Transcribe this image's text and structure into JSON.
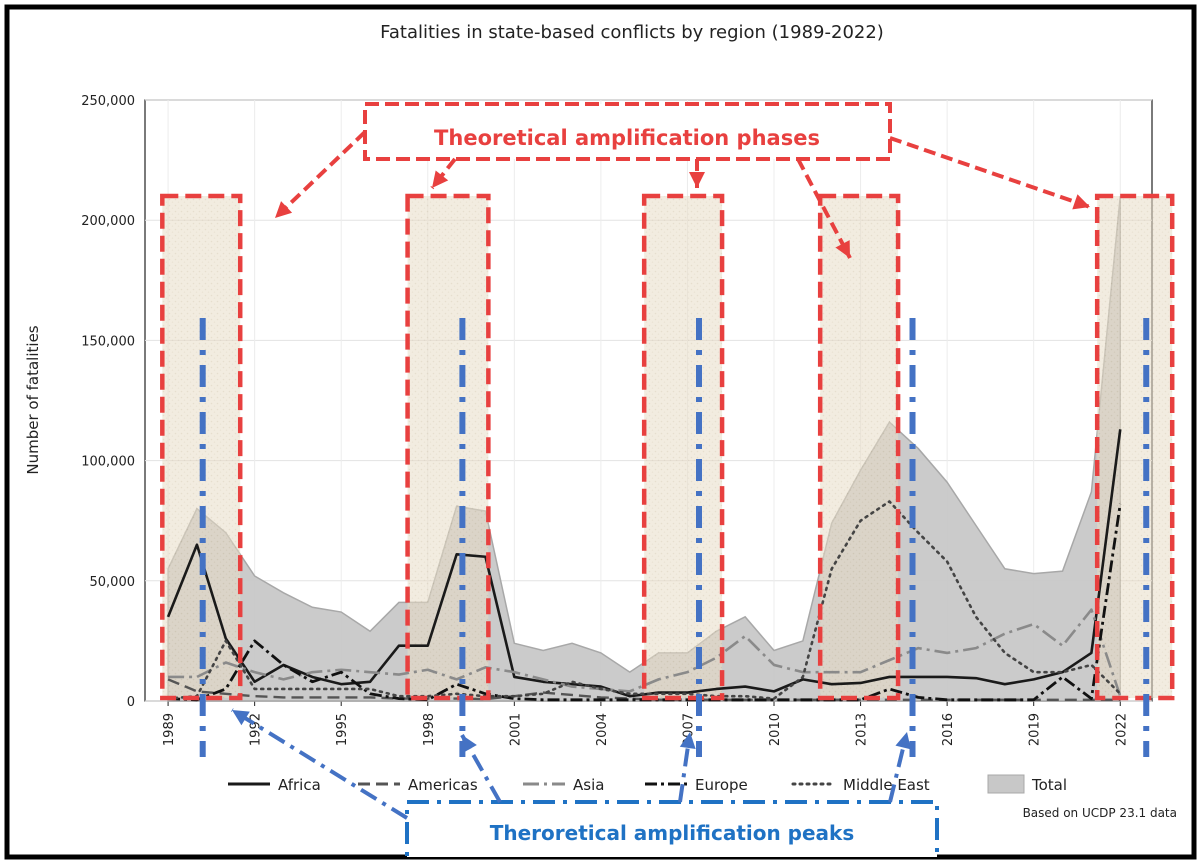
{
  "chart_data": {
    "type": "area",
    "title": "Fatalities in state-based conflicts by region (1989-2022)",
    "ylabel": "Number of fatalities",
    "xlabel": "",
    "source_note": "Based on UCDP 23.1 data",
    "ylim": [
      0,
      250000
    ],
    "xlim": [
      1988.2,
      2023.1
    ],
    "grid": true,
    "legend_position": "bottom",
    "y_ticks": [
      0,
      50000,
      100000,
      150000,
      200000,
      250000
    ],
    "y_tick_labels": [
      "0",
      "50,000",
      "100,000",
      "150,000",
      "200,000",
      "250,000"
    ],
    "x_ticks": [
      1989,
      1992,
      1995,
      1998,
      2001,
      2004,
      2007,
      2010,
      2013,
      2016,
      2019,
      2022
    ],
    "x_tick_labels": [
      "1989",
      "1992",
      "1995",
      "1998",
      "2001",
      "2004",
      "2007",
      "2010",
      "2013",
      "2016",
      "2019",
      "2022"
    ],
    "x": [
      1989,
      1990,
      1991,
      1992,
      1993,
      1994,
      1995,
      1996,
      1997,
      1998,
      1999,
      2000,
      2001,
      2002,
      2003,
      2004,
      2005,
      2006,
      2007,
      2008,
      2009,
      2010,
      2011,
      2012,
      2013,
      2014,
      2015,
      2016,
      2017,
      2018,
      2019,
      2020,
      2021,
      2022
    ],
    "total": {
      "name": "Total",
      "color": "#c8c8c8",
      "values": [
        55000,
        80000,
        70000,
        52000,
        45000,
        39000,
        37000,
        29000,
        41000,
        41000,
        81000,
        79000,
        24000,
        21000,
        24000,
        20000,
        12000,
        20000,
        20000,
        29000,
        35000,
        21000,
        25000,
        74000,
        96000,
        116000,
        105000,
        91000,
        73000,
        55000,
        53000,
        54000,
        87000,
        210000
      ]
    },
    "series": [
      {
        "name": "Africa",
        "style": "solid",
        "color": "#1a1a1a",
        "values": [
          35000,
          65000,
          26000,
          8000,
          15000,
          10000,
          7000,
          8000,
          23000,
          23000,
          61000,
          60000,
          10000,
          8000,
          7000,
          6000,
          2000,
          3500,
          3500,
          5000,
          6000,
          4000,
          9000,
          7000,
          7500,
          10000,
          10000,
          10000,
          9500,
          7000,
          9000,
          12000,
          20000,
          113000
        ]
      },
      {
        "name": "Americas",
        "style": "dashed",
        "color": "#555555",
        "values": [
          9000,
          4000,
          3000,
          2000,
          1500,
          1500,
          1500,
          1500,
          1000,
          1000,
          1000,
          800,
          2000,
          3500,
          2500,
          1500,
          1000,
          500,
          500,
          500,
          500,
          500,
          500,
          500,
          500,
          500,
          500,
          500,
          500,
          500,
          500,
          500,
          500,
          500
        ]
      },
      {
        "name": "Asia",
        "style": "dashdot",
        "color": "#8a8a8a",
        "values": [
          10000,
          10000,
          16000,
          12000,
          9000,
          12000,
          13000,
          12000,
          11000,
          13000,
          9000,
          14000,
          12000,
          9000,
          6000,
          5000,
          4000,
          9000,
          12000,
          18000,
          27000,
          15000,
          12000,
          12000,
          12000,
          17000,
          22000,
          20000,
          22000,
          28000,
          32000,
          23000,
          38000,
          2000
        ]
      },
      {
        "name": "Europe",
        "style": "dashdotbold",
        "color": "#111111",
        "values": [
          1000,
          500,
          5000,
          25000,
          15000,
          8000,
          12000,
          3000,
          1000,
          500,
          7000,
          3000,
          1000,
          500,
          500,
          500,
          500,
          500,
          500,
          500,
          500,
          500,
          500,
          500,
          500,
          5000,
          1500,
          500,
          500,
          500,
          500,
          10000,
          1000,
          82000
        ]
      },
      {
        "name": "Middle East",
        "style": "dotted",
        "color": "#444444",
        "values": [
          1000,
          2000,
          25000,
          5000,
          5000,
          5000,
          5000,
          5000,
          2000,
          2000,
          3000,
          2000,
          2000,
          3000,
          8000,
          5000,
          3000,
          3000,
          3000,
          2000,
          2000,
          1000,
          10000,
          55000,
          75000,
          83000,
          70000,
          58000,
          35000,
          20000,
          12000,
          12000,
          15000,
          3000
        ]
      }
    ]
  },
  "annotations": {
    "phases_label": "Theoretical amplification phases",
    "peaks_label": "Theroretical amplification peaks",
    "phase_color": "#e8403f",
    "peak_color": "#4472c4",
    "peak_label_color": "#1f72c4",
    "phase_ranges": [
      [
        1988.8,
        1991.5
      ],
      [
        1997.3,
        2000.1
      ],
      [
        2005.5,
        2008.2
      ],
      [
        2011.6,
        2014.3
      ],
      [
        2021.2,
        2023.8
      ]
    ],
    "peak_years": [
      1990.2,
      1999.2,
      2007.4,
      2014.8,
      2022.9
    ]
  }
}
